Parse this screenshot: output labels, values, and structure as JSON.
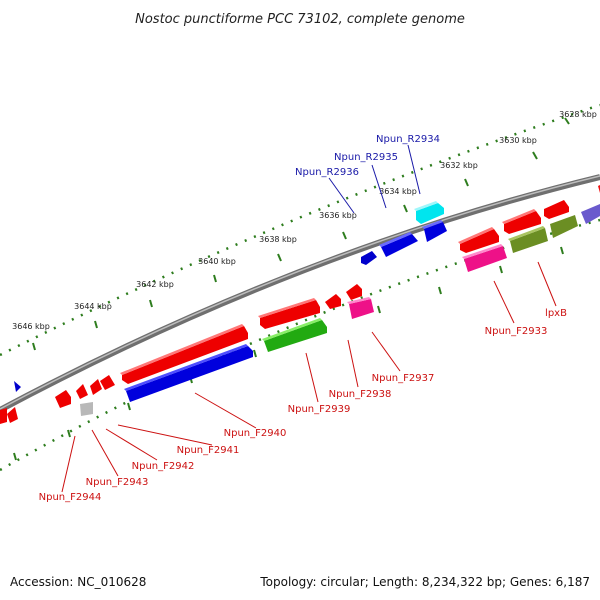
{
  "title": "Nostoc punctiforme PCC 73102, complete genome",
  "footer": {
    "accession": "Accession: NC_010628",
    "summary": "Topology: circular; Length: 8,234,322 bp; Genes: 6,187"
  },
  "colors": {
    "backbone": "#8a8a8a",
    "tick_dots": "#2e7d1e",
    "forward_label": "#1a1aa8",
    "reverse_label": "#cc1111"
  },
  "tick_labels": [
    "3628 kbp",
    "3630 kbp",
    "3632 kbp",
    "3634 kbp",
    "3636 kbp",
    "3638 kbp",
    "3640 kbp",
    "3642 kbp",
    "3644 kbp",
    "3646 kbp"
  ],
  "gene_labels": {
    "forward": [
      "Npun_R2934",
      "Npun_R2935",
      "Npun_R2936"
    ],
    "reverse": [
      "Npun_F2933",
      "lpxB",
      "Npun_F2937",
      "Npun_F2938",
      "Npun_F2939",
      "Npun_F2940",
      "Npun_F2941",
      "Npun_F2942",
      "Npun_F2943",
      "Npun_F2944"
    ]
  }
}
